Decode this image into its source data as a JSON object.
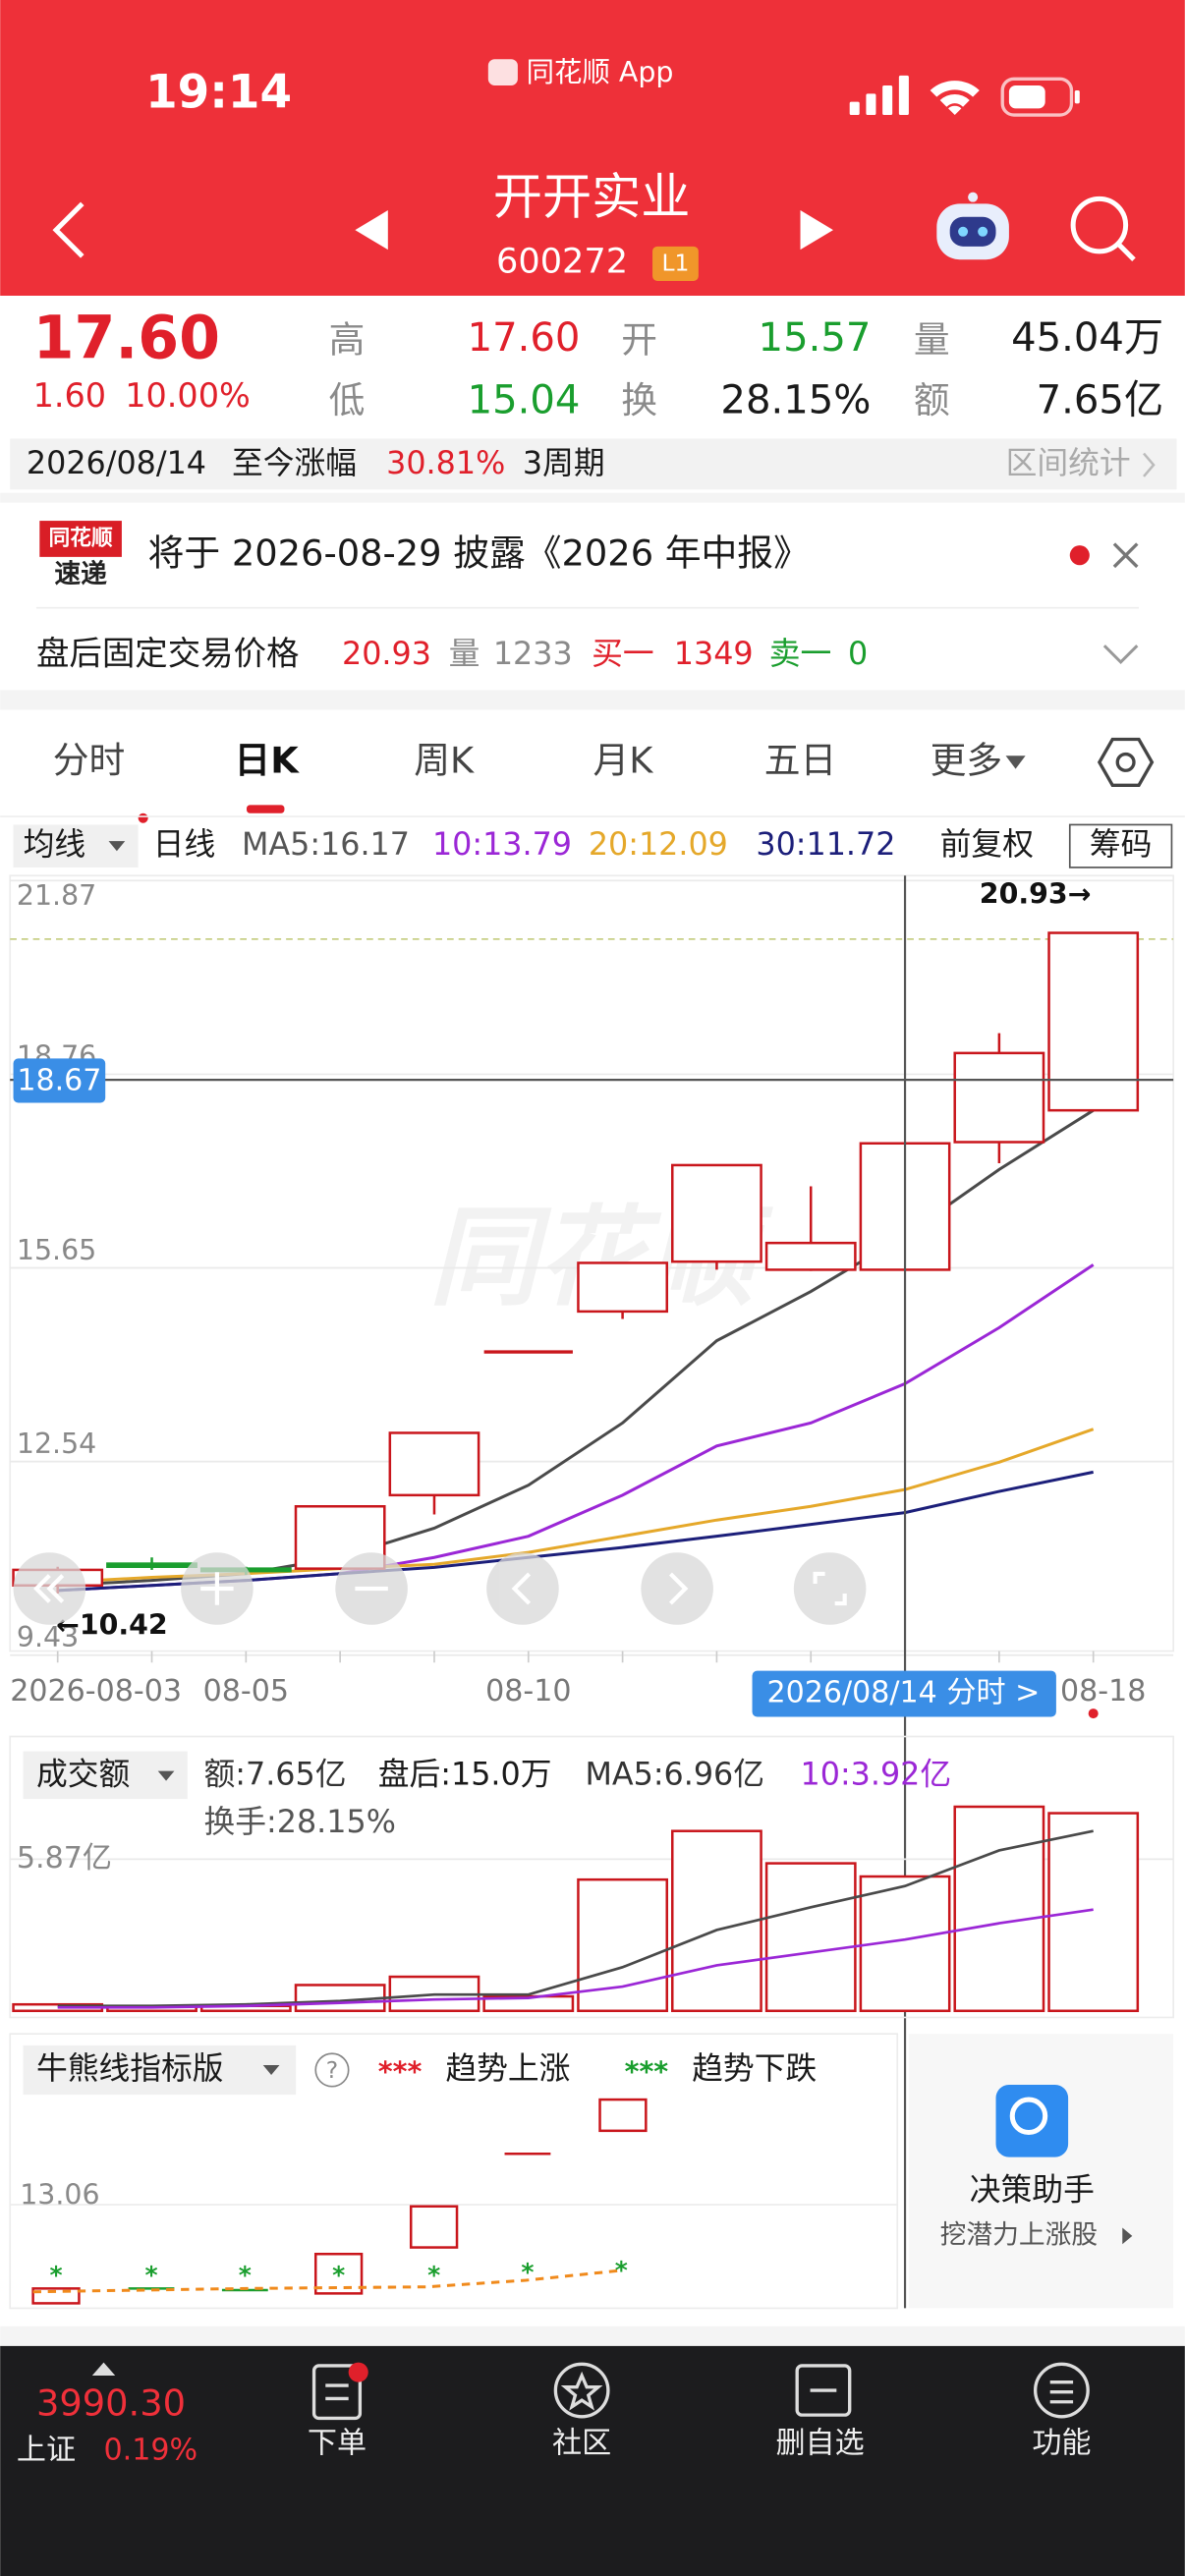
{
  "status_bar": {
    "time": "19:14",
    "app": "同花顺 App"
  },
  "header": {
    "name": "开开实业",
    "code": "600272",
    "badge": "L1"
  },
  "quote": {
    "price": "17.60",
    "change": "1.60",
    "change_pct": "10.00%",
    "high_label": "高",
    "high": "17.60",
    "open_label": "开",
    "open": "15.57",
    "volume_label": "量",
    "volume": "45.04万",
    "low_label": "低",
    "low": "15.04",
    "turnover_label": "换",
    "turnover": "28.15%",
    "amount_label": "额",
    "amount": "7.65亿"
  },
  "range_bar": {
    "date": "2026/08/14",
    "label": "至今涨幅",
    "pct": "30.81%",
    "period": "3周期",
    "stats": "区间统计"
  },
  "notice": {
    "logo_top": "同花顺",
    "logo_bottom": "速递",
    "text": "将于 2026-08-29 披露《2026 年中报》"
  },
  "after_hours": {
    "label": "盘后固定交易价格",
    "price": "20.93",
    "vol_label": "量",
    "vol": "1233",
    "buy_label": "买一",
    "buy": "1349",
    "sell_label": "卖一",
    "sell": "0"
  },
  "tabs": [
    "分时",
    "日K",
    "周K",
    "月K",
    "五日",
    "更多"
  ],
  "kline_toolbar": {
    "ma_menu": "均线",
    "period": "日线",
    "adjust": "前复权",
    "chips": "筹码"
  },
  "volume_toolbar": {
    "menu": "成交额",
    "after_hours": "盘后:15.0万",
    "turnover": "换手:28.15%"
  },
  "indicator_panel": {
    "menu": "牛熊线指标版",
    "help": "?",
    "up_marks": "***",
    "up": "趋势上涨",
    "down_marks": "***",
    "down": "趋势下跌",
    "ytick": "13.06",
    "assistant": "决策助手",
    "assistant_sub": "挖潜力上涨股"
  },
  "bottom_nav": {
    "index_value": "3990.30",
    "index_name": "上证",
    "index_change": "0.19%",
    "items": [
      "下单",
      "社区",
      "删自选",
      "功能"
    ]
  },
  "chart_data": [
    {
      "type": "candlestick",
      "categories": [
        "2026-08-03",
        null,
        "08-05",
        null,
        null,
        "08-10",
        null,
        null,
        null,
        null,
        null,
        "08-18"
      ],
      "open": [
        10.55,
        10.9,
        10.82,
        10.82,
        12.0,
        14.3,
        14.95,
        15.75,
        15.62,
        15.62,
        17.67,
        18.18
      ],
      "high": [
        10.85,
        11.0,
        10.85,
        11.82,
        13.0,
        14.3,
        15.73,
        17.3,
        16.96,
        17.65,
        19.42,
        21.03
      ],
      "low": [
        10.42,
        10.8,
        10.72,
        10.8,
        11.69,
        14.3,
        14.83,
        15.62,
        15.6,
        15.6,
        17.33,
        18.18
      ],
      "close": [
        10.8,
        10.85,
        10.78,
        11.82,
        13.0,
        14.3,
        15.73,
        17.3,
        16.05,
        17.65,
        19.1,
        21.03
      ],
      "up_color": "#c9161c",
      "down_color": "#1a9e2e",
      "ma": [
        {
          "name": "MA5:16.17",
          "color": "#4a4a4a",
          "values": [
            10.55,
            10.63,
            10.74,
            11.0,
            11.47,
            12.16,
            13.16,
            14.48,
            15.27,
            16.17,
            17.23,
            18.18
          ]
        },
        {
          "name": "10:13.79",
          "color": "#9b27d6",
          "values": [
            10.47,
            10.55,
            10.63,
            10.74,
            11.0,
            11.34,
            12.0,
            12.79,
            13.16,
            13.79,
            14.69,
            15.7
          ]
        },
        {
          "name": "20:12.09",
          "color": "#e5a82a",
          "values": [
            10.6,
            10.68,
            10.74,
            10.82,
            10.89,
            11.08,
            11.34,
            11.6,
            11.82,
            12.09,
            12.53,
            13.06
          ]
        },
        {
          "name": "30:11.72",
          "color": "#1c1f7a",
          "values": [
            10.47,
            10.55,
            10.63,
            10.74,
            10.84,
            11.0,
            11.16,
            11.34,
            11.53,
            11.72,
            12.06,
            12.37
          ]
        }
      ],
      "ylim": [
        9.43,
        21.87
      ],
      "yticks": [
        21.87,
        18.76,
        15.65,
        12.54,
        9.43
      ],
      "grid": true,
      "price_line": 20.93,
      "crosshair_y": 18.67,
      "crosshair_label": "2026/08/14 分时 >",
      "annotations": [
        "20.93→",
        "←10.42"
      ]
    },
    {
      "type": "bar",
      "series": [
        {
          "name": "额:7.65亿",
          "color": "#c9161c",
          "kind": "bar",
          "values": [
            0.25,
            0.19,
            0.19,
            1.0,
            1.32,
            0.56,
            5.08,
            6.96,
            5.71,
            5.2,
            7.9,
            7.65
          ]
        },
        {
          "name": "MA5:6.96亿",
          "color": "#4a4a4a",
          "kind": "line",
          "values": [
            0.19,
            0.19,
            0.25,
            0.38,
            0.63,
            0.63,
            1.69,
            3.13,
            4.01,
            4.83,
            6.21,
            6.96
          ]
        },
        {
          "name": "10:3.92亿",
          "color": "#9b27d6",
          "kind": "line",
          "values": [
            0.13,
            0.13,
            0.19,
            0.31,
            0.44,
            0.5,
            0.94,
            1.76,
            2.26,
            2.76,
            3.39,
            3.92
          ]
        }
      ],
      "ylim": [
        0,
        10.3
      ],
      "yticks": [
        {
          "value": 5.87,
          "label": "5.87亿"
        }
      ]
    }
  ]
}
